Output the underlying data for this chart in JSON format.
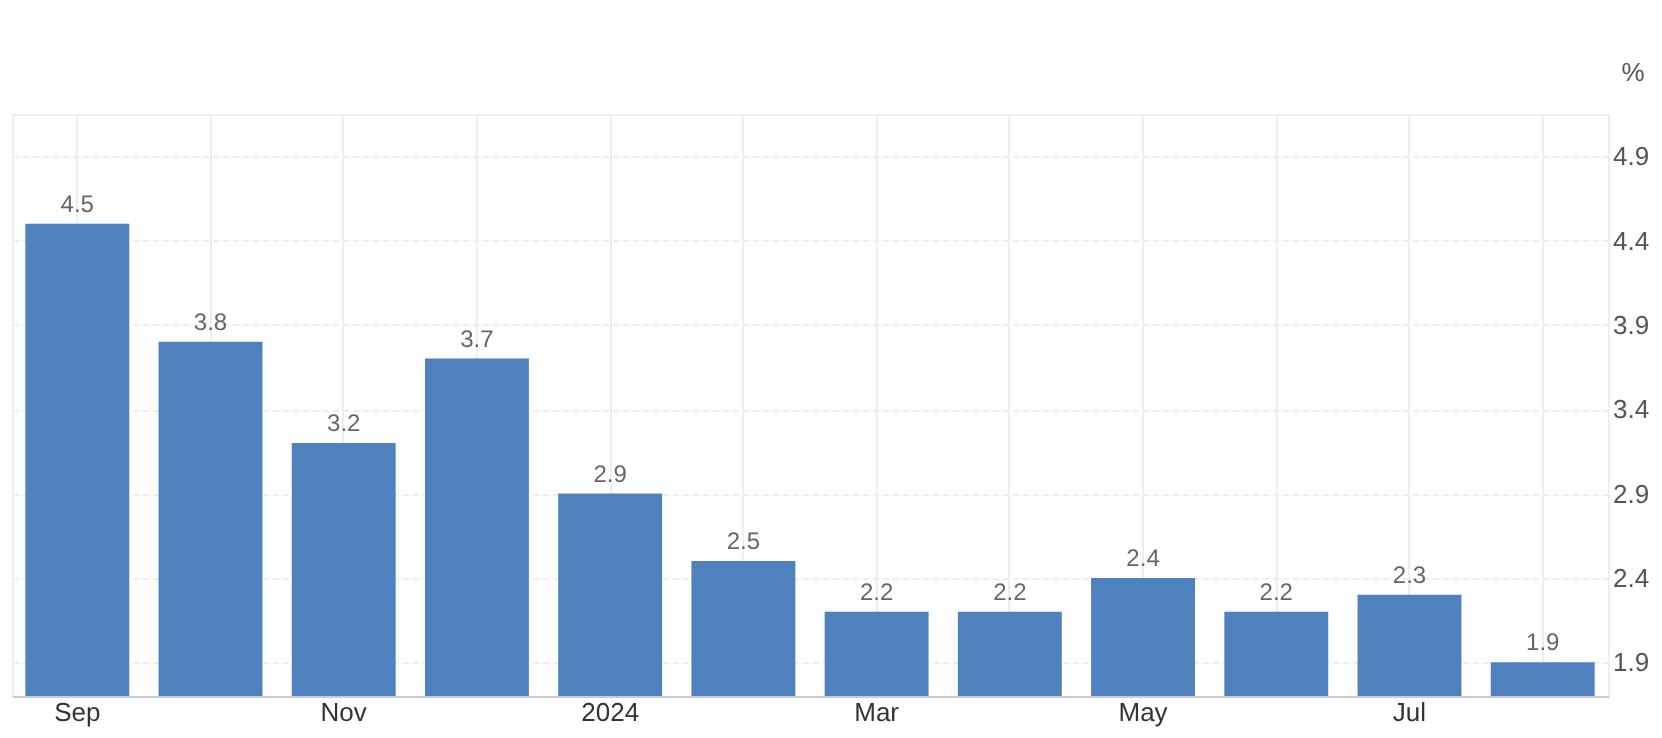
{
  "chart_data": {
    "type": "bar",
    "ylabel": "%",
    "categories": [
      "Sep",
      null,
      "Nov",
      null,
      "2024",
      null,
      "Mar",
      null,
      "May",
      null,
      "Jul",
      null
    ],
    "values": [
      4.5,
      3.8,
      3.2,
      3.7,
      2.9,
      2.5,
      2.2,
      2.2,
      2.4,
      2.2,
      2.3,
      1.9
    ],
    "color": "#4e81bd",
    "ylim": [
      1.7,
      5.15
    ],
    "yticks": [
      1.9,
      2.4,
      2.9,
      3.4,
      3.9,
      4.4,
      4.9
    ],
    "grid": true,
    "data_labels": true
  }
}
